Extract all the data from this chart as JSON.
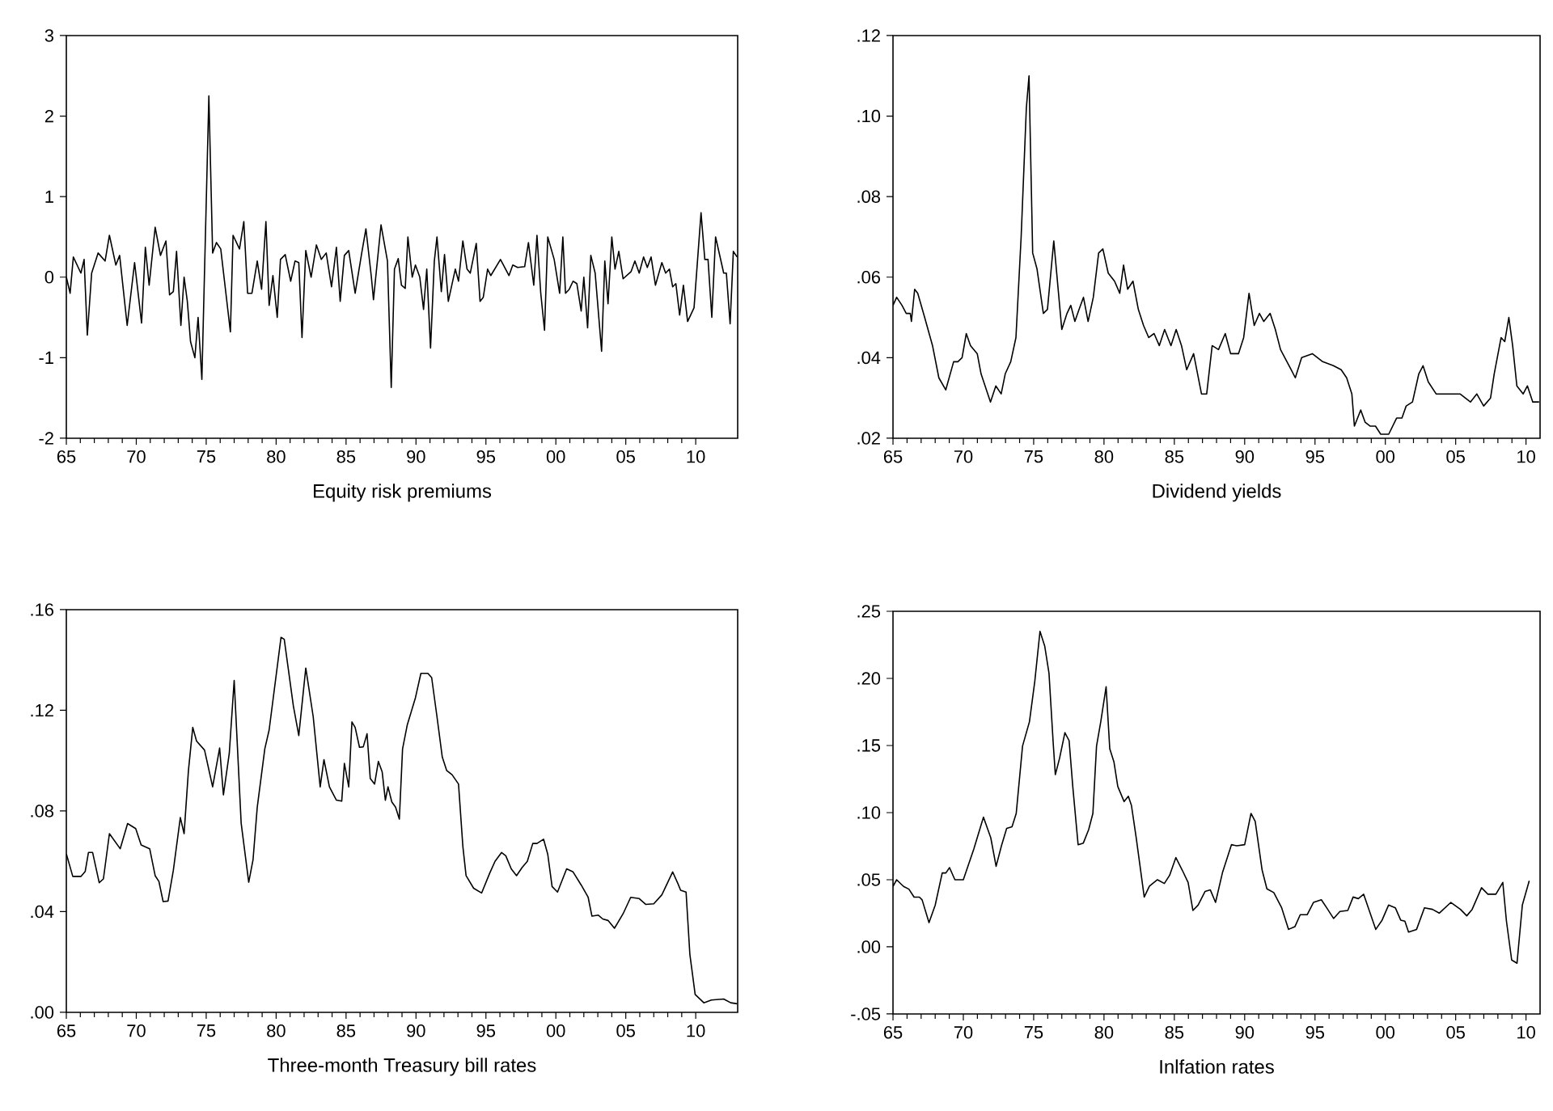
{
  "chart_data": [
    {
      "type": "line",
      "xlabel": "Equity risk premiums",
      "color": "#000000",
      "marker": "none",
      "xlim": [
        1965,
        2013
      ],
      "ylim": [
        -2,
        3
      ],
      "yticks": [
        -2,
        -1,
        0,
        1,
        2,
        3
      ],
      "xticks": [
        {
          "value": 1965,
          "label": "65"
        },
        {
          "value": 1970,
          "label": "70"
        },
        {
          "value": 1975,
          "label": "75"
        },
        {
          "value": 1980,
          "label": "80"
        },
        {
          "value": 1985,
          "label": "85"
        },
        {
          "value": 1990,
          "label": "90"
        },
        {
          "value": 1995,
          "label": "95"
        },
        {
          "value": 2000,
          "label": "00"
        },
        {
          "value": 2005,
          "label": "05"
        },
        {
          "value": 2010,
          "label": "10"
        }
      ],
      "x": [
        1965.0,
        1965.27,
        1965.5,
        1966.04,
        1966.27,
        1966.5,
        1966.81,
        1967.27,
        1967.77,
        1968.08,
        1968.54,
        1968.81,
        1969.35,
        1969.88,
        1970.38,
        1970.65,
        1970.92,
        1971.35,
        1971.73,
        1972.12,
        1972.38,
        1972.65,
        1972.88,
        1973.19,
        1973.42,
        1973.65,
        1973.88,
        1974.19,
        1974.42,
        1974.69,
        1975.19,
        1975.46,
        1975.73,
        1976.04,
        1976.73,
        1976.92,
        1977.38,
        1977.69,
        1977.96,
        1978.27,
        1978.65,
        1978.96,
        1979.27,
        1979.5,
        1979.77,
        1980.08,
        1980.31,
        1980.65,
        1981.04,
        1981.35,
        1981.62,
        1981.85,
        1982.12,
        1982.5,
        1982.88,
        1983.23,
        1983.58,
        1983.96,
        1984.31,
        1984.58,
        1984.88,
        1985.19,
        1985.65,
        1986.12,
        1986.42,
        1986.81,
        1986.96,
        1987.5,
        1987.96,
        1988.23,
        1988.46,
        1988.73,
        1988.96,
        1989.23,
        1989.42,
        1989.73,
        1989.96,
        1990.27,
        1990.54,
        1990.77,
        1991.04,
        1991.31,
        1991.5,
        1991.81,
        1992.04,
        1992.31,
        1992.81,
        1993.04,
        1993.35,
        1993.65,
        1993.88,
        1994.31,
        1994.58,
        1994.81,
        1995.12,
        1995.35,
        1996.04,
        1996.65,
        1996.92,
        1997.27,
        1997.77,
        1998.04,
        1998.42,
        1998.65,
        1998.92,
        1999.19,
        1999.42,
        1999.88,
        2000.27,
        2000.5,
        2000.69,
        2000.96,
        2001.23,
        2001.5,
        2001.81,
        2002.0,
        2002.27,
        2002.5,
        2002.81,
        2003.27,
        2003.5,
        2003.73,
        2004.0,
        2004.23,
        2004.5,
        2004.81,
        2005.38,
        2005.65,
        2005.96,
        2006.27,
        2006.54,
        2006.81,
        2007.12,
        2007.58,
        2007.85,
        2008.12,
        2008.35,
        2008.58,
        2008.85,
        2009.12,
        2009.42,
        2009.88,
        2010.38,
        2010.65,
        2010.88,
        2011.15,
        2011.42,
        2012.0,
        2012.19,
        2012.46,
        2012.69,
        2012.96
      ],
      "values": [
        0.0,
        -0.2,
        0.25,
        0.05,
        0.22,
        -0.72,
        0.05,
        0.3,
        0.2,
        0.52,
        0.15,
        0.27,
        -0.6,
        0.18,
        -0.57,
        0.37,
        -0.1,
        0.62,
        0.27,
        0.45,
        -0.22,
        -0.18,
        0.32,
        -0.6,
        0.0,
        -0.3,
        -0.8,
        -1.0,
        -0.5,
        -1.27,
        2.25,
        0.3,
        0.43,
        0.35,
        -0.68,
        0.52,
        0.35,
        0.69,
        -0.2,
        -0.2,
        0.2,
        -0.15,
        0.69,
        -0.35,
        0.02,
        -0.5,
        0.22,
        0.28,
        -0.05,
        0.2,
        0.18,
        -0.75,
        0.33,
        0.0,
        0.4,
        0.22,
        0.3,
        -0.12,
        0.37,
        -0.3,
        0.27,
        0.33,
        -0.2,
        0.3,
        0.6,
        0.0,
        -0.28,
        0.65,
        0.2,
        -1.37,
        0.1,
        0.23,
        -0.1,
        -0.14,
        0.5,
        0.0,
        0.15,
        0.0,
        -0.4,
        0.1,
        -0.88,
        0.2,
        0.5,
        -0.18,
        0.28,
        -0.3,
        0.1,
        -0.05,
        0.45,
        0.1,
        0.05,
        0.42,
        -0.3,
        -0.25,
        0.1,
        0.02,
        0.22,
        0.02,
        0.15,
        0.12,
        0.13,
        0.43,
        -0.1,
        0.52,
        -0.2,
        -0.66,
        0.5,
        0.22,
        -0.2,
        0.5,
        -0.2,
        -0.15,
        -0.05,
        -0.08,
        -0.42,
        0.0,
        -0.63,
        0.27,
        0.05,
        -0.92,
        0.2,
        -0.33,
        0.5,
        0.1,
        0.32,
        -0.02,
        0.07,
        0.2,
        0.05,
        0.25,
        0.12,
        0.25,
        -0.1,
        0.18,
        0.05,
        0.1,
        -0.12,
        -0.08,
        -0.47,
        -0.1,
        -0.55,
        -0.38,
        0.8,
        0.22,
        0.22,
        -0.5,
        0.5,
        0.05,
        0.05,
        -0.58,
        0.32,
        0.25
      ]
    },
    {
      "type": "line",
      "xlabel": "Dividend yields",
      "color": "#000000",
      "marker": "none",
      "xlim": [
        1965,
        2011
      ],
      "ylim": [
        0.02,
        0.12
      ],
      "yticks": [
        {
          "value": 0.02,
          "label": ".02"
        },
        {
          "value": 0.04,
          "label": ".04"
        },
        {
          "value": 0.06,
          "label": ".06"
        },
        {
          "value": 0.08,
          "label": ".08"
        },
        {
          "value": 0.1,
          "label": ".10"
        },
        {
          "value": 0.12,
          "label": ".12"
        }
      ],
      "xticks": [
        {
          "value": 1965,
          "label": "65"
        },
        {
          "value": 1970,
          "label": "70"
        },
        {
          "value": 1975,
          "label": "75"
        },
        {
          "value": 1980,
          "label": "80"
        },
        {
          "value": 1985,
          "label": "85"
        },
        {
          "value": 1990,
          "label": "90"
        },
        {
          "value": 1995,
          "label": "95"
        },
        {
          "value": 2000,
          "label": "00"
        },
        {
          "value": 2005,
          "label": "05"
        },
        {
          "value": 2010,
          "label": "10"
        }
      ],
      "x": [
        1965.0,
        1965.26,
        1965.64,
        1965.94,
        1966.23,
        1966.31,
        1966.54,
        1966.76,
        1967.25,
        1967.81,
        1968.26,
        1968.75,
        1969.31,
        1969.61,
        1969.91,
        1970.21,
        1970.51,
        1970.99,
        1971.26,
        1971.93,
        1972.31,
        1972.69,
        1972.98,
        1973.37,
        1973.74,
        1974.11,
        1974.48,
        1974.67,
        1974.93,
        1975.24,
        1975.69,
        1975.98,
        1976.43,
        1977.0,
        1977.37,
        1977.64,
        1977.93,
        1978.23,
        1978.54,
        1978.87,
        1979.24,
        1979.62,
        1979.92,
        1980.3,
        1980.75,
        1981.12,
        1981.39,
        1981.68,
        1982.06,
        1982.44,
        1982.81,
        1983.18,
        1983.56,
        1983.93,
        1984.31,
        1984.76,
        1985.13,
        1985.51,
        1985.88,
        1986.37,
        1986.93,
        1987.3,
        1987.69,
        1988.14,
        1988.62,
        1989.0,
        1989.56,
        1989.93,
        1990.31,
        1990.68,
        1991.05,
        1991.36,
        1991.81,
        1992.18,
        1992.55,
        1993.31,
        1993.6,
        1994.05,
        1994.81,
        1995.55,
        1996.31,
        1996.86,
        1997.25,
        1997.62,
        1997.8,
        1998.25,
        1998.56,
        1998.93,
        1999.3,
        1999.67,
        2000.24,
        2000.8,
        2001.18,
        2001.48,
        2001.93,
        2002.38,
        2002.68,
        2003.05,
        2003.61,
        2004.18,
        2004.74,
        2005.31,
        2006.05,
        2006.5,
        2006.99,
        2007.48,
        2007.74,
        2008.23,
        2008.49,
        2008.78,
        2009.05,
        2009.35,
        2009.8,
        2010.1,
        2010.48,
        2010.93
      ],
      "values": [
        0.053,
        0.055,
        0.053,
        0.051,
        0.051,
        0.049,
        0.057,
        0.056,
        0.05,
        0.043,
        0.035,
        0.032,
        0.039,
        0.039,
        0.04,
        0.046,
        0.043,
        0.041,
        0.036,
        0.029,
        0.033,
        0.031,
        0.036,
        0.039,
        0.045,
        0.07,
        0.102,
        0.11,
        0.066,
        0.062,
        0.051,
        0.052,
        0.069,
        0.047,
        0.051,
        0.053,
        0.049,
        0.052,
        0.055,
        0.049,
        0.055,
        0.066,
        0.067,
        0.061,
        0.059,
        0.056,
        0.063,
        0.057,
        0.059,
        0.052,
        0.048,
        0.045,
        0.046,
        0.043,
        0.047,
        0.043,
        0.047,
        0.043,
        0.037,
        0.041,
        0.031,
        0.031,
        0.043,
        0.042,
        0.046,
        0.041,
        0.041,
        0.045,
        0.056,
        0.048,
        0.051,
        0.049,
        0.051,
        0.047,
        0.042,
        0.037,
        0.035,
        0.04,
        0.041,
        0.039,
        0.038,
        0.037,
        0.035,
        0.031,
        0.023,
        0.027,
        0.024,
        0.023,
        0.023,
        0.021,
        0.021,
        0.025,
        0.025,
        0.028,
        0.029,
        0.036,
        0.038,
        0.034,
        0.031,
        0.031,
        0.031,
        0.031,
        0.029,
        0.031,
        0.028,
        0.03,
        0.036,
        0.045,
        0.044,
        0.05,
        0.043,
        0.033,
        0.031,
        0.033,
        0.029,
        0.029
      ]
    },
    {
      "type": "line",
      "xlabel": "Three-month Treasury bill rates",
      "color": "#000000",
      "marker": "none",
      "xlim": [
        1965,
        2013
      ],
      "ylim": [
        0,
        0.16
      ],
      "yticks": [
        {
          "value": 0,
          "label": ".00"
        },
        {
          "value": 0.04,
          "label": ".04"
        },
        {
          "value": 0.08,
          "label": ".08"
        },
        {
          "value": 0.12,
          "label": ".12"
        },
        {
          "value": 0.16,
          "label": ".16"
        }
      ],
      "xticks": [
        {
          "value": 1965,
          "label": "65"
        },
        {
          "value": 1970,
          "label": "70"
        },
        {
          "value": 1975,
          "label": "75"
        },
        {
          "value": 1980,
          "label": "80"
        },
        {
          "value": 1985,
          "label": "85"
        },
        {
          "value": 1990,
          "label": "90"
        },
        {
          "value": 1995,
          "label": "95"
        },
        {
          "value": 2000,
          "label": "00"
        },
        {
          "value": 2005,
          "label": "05"
        },
        {
          "value": 2010,
          "label": "10"
        }
      ],
      "x": [
        1965.0,
        1965.46,
        1966.04,
        1966.35,
        1966.58,
        1966.88,
        1967.35,
        1967.65,
        1968.08,
        1968.85,
        1969.38,
        1969.96,
        1970.35,
        1970.96,
        1971.35,
        1971.62,
        1971.92,
        1972.27,
        1972.65,
        1973.15,
        1973.42,
        1973.73,
        1974.04,
        1974.31,
        1974.88,
        1975.46,
        1975.96,
        1976.23,
        1976.65,
        1977.0,
        1977.5,
        1978.04,
        1978.35,
        1978.65,
        1979.19,
        1979.5,
        1980.35,
        1980.58,
        1981.23,
        1981.62,
        1982.12,
        1982.65,
        1983.15,
        1983.42,
        1983.81,
        1984.31,
        1984.69,
        1984.88,
        1985.19,
        1985.42,
        1985.65,
        1985.96,
        1986.23,
        1986.5,
        1986.73,
        1987.04,
        1987.31,
        1987.58,
        1987.81,
        1988.0,
        1988.27,
        1988.54,
        1988.81,
        1989.04,
        1989.38,
        1989.96,
        1990.35,
        1990.85,
        1991.12,
        1991.5,
        1991.88,
        1992.19,
        1992.58,
        1993.04,
        1993.35,
        1993.58,
        1994.12,
        1994.69,
        1995.27,
        1995.65,
        1996.12,
        1996.42,
        1996.81,
        1997.19,
        1997.58,
        1997.96,
        1998.35,
        1998.65,
        1999.12,
        1999.42,
        1999.73,
        2000.12,
        2000.77,
        2001.23,
        2001.81,
        2002.31,
        2002.58,
        2003.04,
        2003.35,
        2003.73,
        2004.19,
        2004.81,
        2005.35,
        2005.96,
        2006.42,
        2007.0,
        2007.58,
        2008.35,
        2008.73,
        2008.92,
        2009.31,
        2009.58,
        2009.96,
        2010.58,
        2011.12,
        2012.0,
        2012.5,
        2012.96
      ],
      "values": [
        0.063,
        0.054,
        0.054,
        0.056,
        0.0635,
        0.0635,
        0.0515,
        0.053,
        0.071,
        0.065,
        0.075,
        0.073,
        0.0665,
        0.065,
        0.0543,
        0.052,
        0.044,
        0.0442,
        0.0564,
        0.0774,
        0.071,
        0.0961,
        0.1132,
        0.1078,
        0.1042,
        0.0896,
        0.105,
        0.0864,
        0.1029,
        0.1319,
        0.0751,
        0.0517,
        0.0607,
        0.0815,
        0.1047,
        0.1122,
        0.149,
        0.1482,
        0.1218,
        0.11,
        0.1368,
        0.1175,
        0.0896,
        0.1004,
        0.0896,
        0.0843,
        0.0839,
        0.0989,
        0.0896,
        0.1154,
        0.1132,
        0.1053,
        0.1055,
        0.1107,
        0.0929,
        0.0907,
        0.0997,
        0.0956,
        0.0843,
        0.0896,
        0.0836,
        0.0815,
        0.0768,
        0.1047,
        0.1143,
        0.125,
        0.1347,
        0.1347,
        0.133,
        0.1175,
        0.1014,
        0.0961,
        0.0944,
        0.0907,
        0.066,
        0.0543,
        0.0493,
        0.0474,
        0.0553,
        0.06,
        0.0635,
        0.0622,
        0.057,
        0.0543,
        0.0575,
        0.06,
        0.0671,
        0.0671,
        0.0688,
        0.0628,
        0.05,
        0.0478,
        0.057,
        0.0558,
        0.0506,
        0.0457,
        0.0382,
        0.0386,
        0.0371,
        0.0365,
        0.0334,
        0.0392,
        0.0457,
        0.0452,
        0.0429,
        0.0431,
        0.0467,
        0.0558,
        0.0511,
        0.0485,
        0.0478,
        0.0231,
        0.0071,
        0.0038,
        0.0049,
        0.0053,
        0.0038,
        0.0034
      ]
    },
    {
      "type": "line",
      "xlabel": "Inlfation rates",
      "color": "#000000",
      "marker": "none",
      "xlim": [
        1965,
        2011
      ],
      "ylim": [
        -0.05,
        0.25
      ],
      "yticks": [
        {
          "value": -0.05,
          "label": "-.05"
        },
        {
          "value": 0,
          "label": ".00"
        },
        {
          "value": 0.05,
          "label": ".05"
        },
        {
          "value": 0.1,
          "label": ".10"
        },
        {
          "value": 0.15,
          "label": ".15"
        },
        {
          "value": 0.2,
          "label": ".20"
        },
        {
          "value": 0.25,
          "label": ".25"
        }
      ],
      "xticks": [
        {
          "value": 1965,
          "label": "65"
        },
        {
          "value": 1970,
          "label": "70"
        },
        {
          "value": 1975,
          "label": "75"
        },
        {
          "value": 1980,
          "label": "80"
        },
        {
          "value": 1985,
          "label": "85"
        },
        {
          "value": 1990,
          "label": "90"
        },
        {
          "value": 1995,
          "label": "95"
        },
        {
          "value": 2000,
          "label": "00"
        },
        {
          "value": 2005,
          "label": "05"
        },
        {
          "value": 2010,
          "label": "10"
        }
      ],
      "x": [
        1965.0,
        1965.26,
        1965.75,
        1966.13,
        1966.5,
        1966.88,
        1967.07,
        1967.56,
        1968.0,
        1968.5,
        1968.76,
        1969.02,
        1969.4,
        1970.0,
        1970.75,
        1971.43,
        1971.95,
        1972.33,
        1972.71,
        1973.08,
        1973.46,
        1973.76,
        1974.21,
        1974.7,
        1975.08,
        1975.45,
        1975.79,
        1976.09,
        1976.39,
        1976.54,
        1976.84,
        1977.22,
        1977.52,
        1977.78,
        1978.16,
        1978.53,
        1978.91,
        1979.21,
        1979.47,
        1979.77,
        1980.15,
        1980.41,
        1980.71,
        1980.98,
        1981.43,
        1981.73,
        1981.95,
        1982.29,
        1982.86,
        1983.23,
        1983.8,
        1984.29,
        1984.66,
        1985.11,
        1985.56,
        1985.98,
        1986.32,
        1986.69,
        1987.18,
        1987.56,
        1987.93,
        1988.42,
        1989.06,
        1989.44,
        1990.0,
        1990.45,
        1990.75,
        1991.24,
        1991.58,
        1992.07,
        1992.63,
        1993.12,
        1993.57,
        1993.95,
        1994.44,
        1994.89,
        1995.45,
        1995.83,
        1996.32,
        1996.77,
        1997.33,
        1997.71,
        1998.08,
        1998.46,
        1998.83,
        1999.32,
        1999.77,
        2000.23,
        2000.71,
        2001.09,
        2001.39,
        2001.65,
        2002.22,
        2002.78,
        2003.35,
        2003.83,
        2004.66,
        2005.34,
        2005.79,
        2006.17,
        2006.84,
        2007.29,
        2007.86,
        2008.35,
        2008.61,
        2008.98,
        2009.36,
        2009.74,
        2010.23
      ],
      "values": [
        0.045,
        0.05,
        0.045,
        0.043,
        0.037,
        0.037,
        0.035,
        0.018,
        0.031,
        0.055,
        0.055,
        0.059,
        0.05,
        0.05,
        0.073,
        0.0966,
        0.0813,
        0.06,
        0.0753,
        0.0882,
        0.0894,
        0.0994,
        0.1496,
        0.1677,
        0.1978,
        0.2351,
        0.2239,
        0.2038,
        0.1516,
        0.1283,
        0.1404,
        0.1596,
        0.1536,
        0.1195,
        0.0761,
        0.0773,
        0.0873,
        0.0994,
        0.1496,
        0.1677,
        0.1938,
        0.1476,
        0.1376,
        0.1195,
        0.1082,
        0.1122,
        0.1054,
        0.0813,
        0.0371,
        0.0452,
        0.05,
        0.0472,
        0.0532,
        0.0665,
        0.0572,
        0.048,
        0.0271,
        0.0311,
        0.0412,
        0.0424,
        0.0331,
        0.0552,
        0.0761,
        0.0753,
        0.0761,
        0.0994,
        0.0934,
        0.0572,
        0.0432,
        0.0404,
        0.0291,
        0.013,
        0.015,
        0.0239,
        0.0239,
        0.0331,
        0.0351,
        0.0291,
        0.0211,
        0.0263,
        0.0271,
        0.0371,
        0.0359,
        0.0392,
        0.0279,
        0.013,
        0.0199,
        0.0311,
        0.0291,
        0.0199,
        0.0191,
        0.011,
        0.013,
        0.0291,
        0.0279,
        0.0251,
        0.0331,
        0.0279,
        0.0231,
        0.0279,
        0.044,
        0.0392,
        0.0392,
        0.048,
        0.0191,
        -0.0098,
        -0.0122,
        0.0311,
        0.0492
      ]
    }
  ]
}
